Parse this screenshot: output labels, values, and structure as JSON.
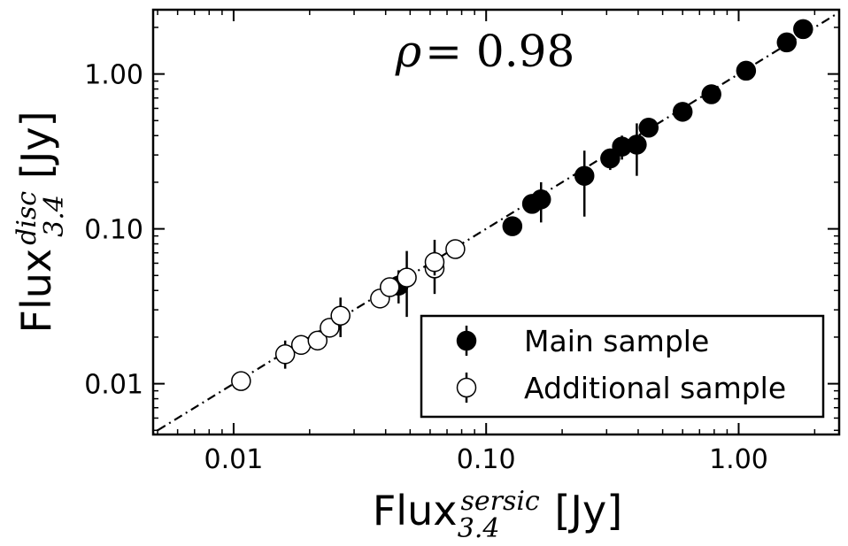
{
  "chart_data": {
    "type": "scatter",
    "x_scale": "log",
    "y_scale": "log",
    "xlim": [
      0.0048,
      2.5
    ],
    "ylim": [
      0.0047,
      2.6
    ],
    "x_ticks": [
      {
        "value": 0.01,
        "label": "0.01"
      },
      {
        "value": 0.1,
        "label": "0.10"
      },
      {
        "value": 1.0,
        "label": "1.00"
      }
    ],
    "y_ticks": [
      {
        "value": 0.01,
        "label": "0.01"
      },
      {
        "value": 0.1,
        "label": "0.10"
      },
      {
        "value": 1.0,
        "label": "1.00"
      }
    ],
    "xlabel": {
      "main": "Flux",
      "sup": "sersic",
      "sub": "3.4",
      "unit": "[Jy]"
    },
    "ylabel": {
      "main": "Flux",
      "sup": "disc",
      "sub": "3.4",
      "unit": "[Jy]"
    },
    "annotation": {
      "symbol": "ρ",
      "text": "= 0.98"
    },
    "reference_line": {
      "type": "one-to-one",
      "style": "dash-dot"
    },
    "legend": {
      "placement": "lower-right",
      "entries": [
        {
          "label": "Main sample",
          "series": "main"
        },
        {
          "label": "Additional sample",
          "series": "additional"
        }
      ]
    },
    "series": [
      {
        "name": "Main sample",
        "key": "main",
        "marker": "filled-circle",
        "color": "#000000",
        "points": [
          {
            "x": 0.045,
            "y": 0.043,
            "ylo": 0.033,
            "yhi": 0.054
          },
          {
            "x": 0.127,
            "y": 0.104,
            "ylo": null,
            "yhi": null
          },
          {
            "x": 0.152,
            "y": 0.145,
            "ylo": null,
            "yhi": null
          },
          {
            "x": 0.165,
            "y": 0.155,
            "ylo": 0.11,
            "yhi": 0.2
          },
          {
            "x": 0.245,
            "y": 0.22,
            "ylo": 0.12,
            "yhi": 0.32
          },
          {
            "x": 0.31,
            "y": 0.285,
            "ylo": 0.24,
            "yhi": 0.33
          },
          {
            "x": 0.345,
            "y": 0.34,
            "ylo": 0.28,
            "yhi": 0.4
          },
          {
            "x": 0.395,
            "y": 0.35,
            "ylo": 0.22,
            "yhi": 0.48
          },
          {
            "x": 0.44,
            "y": 0.45,
            "ylo": null,
            "yhi": null
          },
          {
            "x": 0.6,
            "y": 0.57,
            "ylo": null,
            "yhi": null
          },
          {
            "x": 0.78,
            "y": 0.74,
            "ylo": null,
            "yhi": null
          },
          {
            "x": 1.07,
            "y": 1.05,
            "ylo": null,
            "yhi": null
          },
          {
            "x": 1.55,
            "y": 1.6,
            "ylo": null,
            "yhi": null
          },
          {
            "x": 1.8,
            "y": 1.95,
            "ylo": null,
            "yhi": null
          }
        ]
      },
      {
        "name": "Additional sample",
        "key": "additional",
        "marker": "open-circle",
        "color": "#000000",
        "points": [
          {
            "x": 0.0107,
            "y": 0.0104,
            "ylo": null,
            "yhi": null
          },
          {
            "x": 0.016,
            "y": 0.0155,
            "ylo": 0.0125,
            "yhi": 0.019
          },
          {
            "x": 0.0185,
            "y": 0.0178,
            "ylo": null,
            "yhi": null
          },
          {
            "x": 0.0215,
            "y": 0.019,
            "ylo": null,
            "yhi": null
          },
          {
            "x": 0.024,
            "y": 0.023,
            "ylo": null,
            "yhi": null
          },
          {
            "x": 0.0265,
            "y": 0.0275,
            "ylo": 0.02,
            "yhi": 0.036
          },
          {
            "x": 0.038,
            "y": 0.0355,
            "ylo": null,
            "yhi": null
          },
          {
            "x": 0.0415,
            "y": 0.042,
            "ylo": null,
            "yhi": null
          },
          {
            "x": 0.0485,
            "y": 0.0485,
            "ylo": 0.027,
            "yhi": 0.072
          },
          {
            "x": 0.0625,
            "y": 0.0555,
            "ylo": 0.038,
            "yhi": 0.072
          },
          {
            "x": 0.0625,
            "y": 0.061,
            "ylo": 0.05,
            "yhi": 0.085
          },
          {
            "x": 0.0755,
            "y": 0.074,
            "ylo": null,
            "yhi": null
          }
        ]
      }
    ]
  }
}
